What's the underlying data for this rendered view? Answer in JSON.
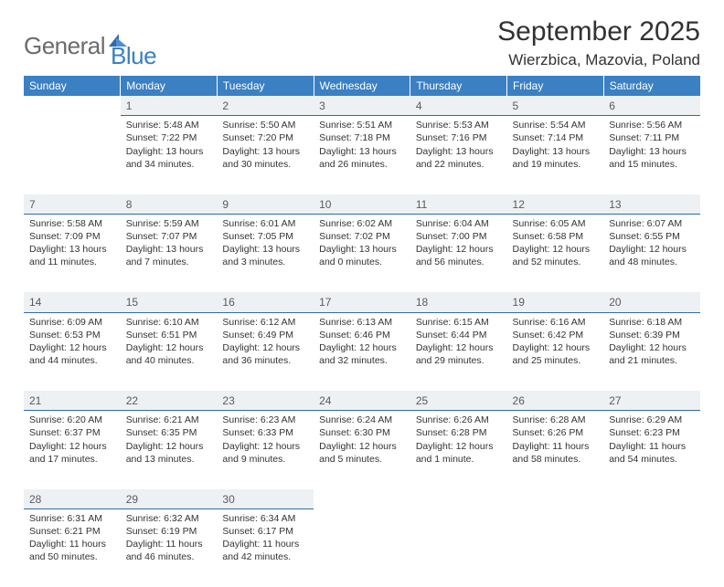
{
  "logo": {
    "part1": "General",
    "part2": "Blue"
  },
  "header": {
    "month_title": "September 2025",
    "location": "Wierzbica, Mazovia, Poland"
  },
  "colors": {
    "header_bg": "#3a80c3",
    "daynum_bg": "#eef1f3",
    "daynum_border": "#2f6aa8",
    "text": "#333333"
  },
  "weekdays": [
    "Sunday",
    "Monday",
    "Tuesday",
    "Wednesday",
    "Thursday",
    "Friday",
    "Saturday"
  ],
  "weeks": [
    [
      null,
      {
        "n": "1",
        "sr": "5:48 AM",
        "ss": "7:22 PM",
        "dl": "13 hours and 34 minutes."
      },
      {
        "n": "2",
        "sr": "5:50 AM",
        "ss": "7:20 PM",
        "dl": "13 hours and 30 minutes."
      },
      {
        "n": "3",
        "sr": "5:51 AM",
        "ss": "7:18 PM",
        "dl": "13 hours and 26 minutes."
      },
      {
        "n": "4",
        "sr": "5:53 AM",
        "ss": "7:16 PM",
        "dl": "13 hours and 22 minutes."
      },
      {
        "n": "5",
        "sr": "5:54 AM",
        "ss": "7:14 PM",
        "dl": "13 hours and 19 minutes."
      },
      {
        "n": "6",
        "sr": "5:56 AM",
        "ss": "7:11 PM",
        "dl": "13 hours and 15 minutes."
      }
    ],
    [
      {
        "n": "7",
        "sr": "5:58 AM",
        "ss": "7:09 PM",
        "dl": "13 hours and 11 minutes."
      },
      {
        "n": "8",
        "sr": "5:59 AM",
        "ss": "7:07 PM",
        "dl": "13 hours and 7 minutes."
      },
      {
        "n": "9",
        "sr": "6:01 AM",
        "ss": "7:05 PM",
        "dl": "13 hours and 3 minutes."
      },
      {
        "n": "10",
        "sr": "6:02 AM",
        "ss": "7:02 PM",
        "dl": "13 hours and 0 minutes."
      },
      {
        "n": "11",
        "sr": "6:04 AM",
        "ss": "7:00 PM",
        "dl": "12 hours and 56 minutes."
      },
      {
        "n": "12",
        "sr": "6:05 AM",
        "ss": "6:58 PM",
        "dl": "12 hours and 52 minutes."
      },
      {
        "n": "13",
        "sr": "6:07 AM",
        "ss": "6:55 PM",
        "dl": "12 hours and 48 minutes."
      }
    ],
    [
      {
        "n": "14",
        "sr": "6:09 AM",
        "ss": "6:53 PM",
        "dl": "12 hours and 44 minutes."
      },
      {
        "n": "15",
        "sr": "6:10 AM",
        "ss": "6:51 PM",
        "dl": "12 hours and 40 minutes."
      },
      {
        "n": "16",
        "sr": "6:12 AM",
        "ss": "6:49 PM",
        "dl": "12 hours and 36 minutes."
      },
      {
        "n": "17",
        "sr": "6:13 AM",
        "ss": "6:46 PM",
        "dl": "12 hours and 32 minutes."
      },
      {
        "n": "18",
        "sr": "6:15 AM",
        "ss": "6:44 PM",
        "dl": "12 hours and 29 minutes."
      },
      {
        "n": "19",
        "sr": "6:16 AM",
        "ss": "6:42 PM",
        "dl": "12 hours and 25 minutes."
      },
      {
        "n": "20",
        "sr": "6:18 AM",
        "ss": "6:39 PM",
        "dl": "12 hours and 21 minutes."
      }
    ],
    [
      {
        "n": "21",
        "sr": "6:20 AM",
        "ss": "6:37 PM",
        "dl": "12 hours and 17 minutes."
      },
      {
        "n": "22",
        "sr": "6:21 AM",
        "ss": "6:35 PM",
        "dl": "12 hours and 13 minutes."
      },
      {
        "n": "23",
        "sr": "6:23 AM",
        "ss": "6:33 PM",
        "dl": "12 hours and 9 minutes."
      },
      {
        "n": "24",
        "sr": "6:24 AM",
        "ss": "6:30 PM",
        "dl": "12 hours and 5 minutes."
      },
      {
        "n": "25",
        "sr": "6:26 AM",
        "ss": "6:28 PM",
        "dl": "12 hours and 1 minute."
      },
      {
        "n": "26",
        "sr": "6:28 AM",
        "ss": "6:26 PM",
        "dl": "11 hours and 58 minutes."
      },
      {
        "n": "27",
        "sr": "6:29 AM",
        "ss": "6:23 PM",
        "dl": "11 hours and 54 minutes."
      }
    ],
    [
      {
        "n": "28",
        "sr": "6:31 AM",
        "ss": "6:21 PM",
        "dl": "11 hours and 50 minutes."
      },
      {
        "n": "29",
        "sr": "6:32 AM",
        "ss": "6:19 PM",
        "dl": "11 hours and 46 minutes."
      },
      {
        "n": "30",
        "sr": "6:34 AM",
        "ss": "6:17 PM",
        "dl": "11 hours and 42 minutes."
      },
      null,
      null,
      null,
      null
    ]
  ],
  "labels": {
    "sunrise_prefix": "Sunrise: ",
    "sunset_prefix": "Sunset: ",
    "daylight_prefix": "Daylight: "
  }
}
